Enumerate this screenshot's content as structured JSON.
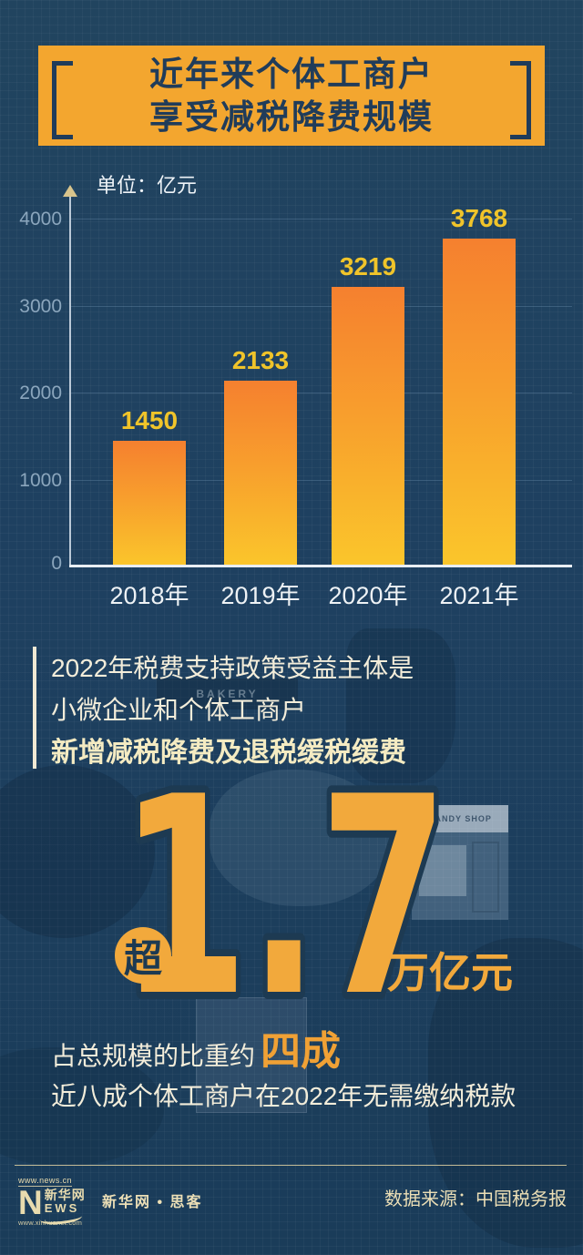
{
  "title": {
    "line1": "近年来个体工商户",
    "line2": "享受减税降费规模"
  },
  "chart_data": {
    "type": "bar",
    "title": "近年来个体工商户享受减税降费规模",
    "unit_label": "单位：亿元",
    "categories": [
      "2018年",
      "2019年",
      "2020年",
      "2021年"
    ],
    "values": [
      1450,
      2133,
      3219,
      3768
    ],
    "ylim": [
      0,
      4000
    ],
    "y_ticks_desc": [
      4000,
      3000,
      2000,
      1000,
      0
    ],
    "grid": true,
    "legend": "none",
    "bar_color_top": "#f5802f",
    "bar_color_bottom": "#fac62b",
    "value_label_color": "#f0c42a"
  },
  "highlight": {
    "line1": "2022年税费支持政策受益主体是",
    "line2": "小微企业和个体工商户",
    "line3": "新增减税降费及退税缓税缓费",
    "badge": "超",
    "big_number": "1.7",
    "big_unit": "万亿元",
    "share_prefix": "占总规模的比重约",
    "share_value": "四成",
    "note": "近八成个体工商户在2022年无需缴纳税款"
  },
  "footer": {
    "logo_url_top": "www.news.cn",
    "logo_n": "N",
    "logo_cn": "新华网",
    "logo_ews": "EWS",
    "logo_url_bottom": "www.xinhuanet.com",
    "brand": "新华网 • 思客",
    "source": "数据来源：中国税务报"
  },
  "background": {
    "watermark_candy": "CANDY SHOP",
    "watermark_bakery": "BAKERY"
  },
  "colors": {
    "background": "#1e4060",
    "banner": "#f3a62f",
    "banner_text": "#203c5a",
    "bar_top": "#f5802f",
    "bar_bottom": "#fac62b",
    "value_label": "#f0c42a",
    "number_accent": "#f2a93c",
    "cream_text": "#f3edda",
    "footer_text": "#ecdfb6"
  }
}
